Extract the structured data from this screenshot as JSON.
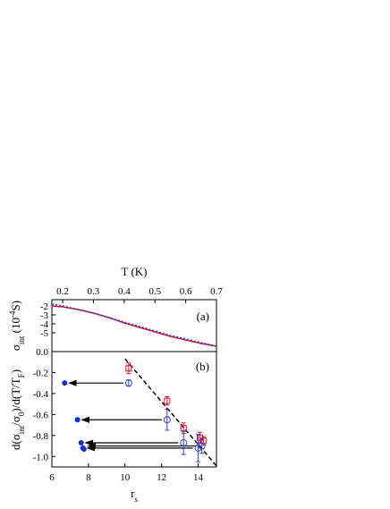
{
  "chart_data": [
    {
      "type": "line",
      "xlabel": "T (K)",
      "ylabel": [
        "σ",
        "int",
        " (10",
        "-4",
        "S)"
      ],
      "annotation": "(a)",
      "x": [
        0.165,
        0.2,
        0.25,
        0.3,
        0.35,
        0.4,
        0.45,
        0.5,
        0.55,
        0.6,
        0.65,
        0.7
      ],
      "xlim": [
        0.165,
        0.7
      ],
      "xticks": [
        0.2,
        0.3,
        0.4,
        0.5,
        0.6,
        0.7
      ],
      "ylim": [
        -7.1,
        -1.3
      ],
      "yticks": [
        -2,
        -3,
        -4,
        -5
      ],
      "series": [
        {
          "color": "#e0102a",
          "style": "solid",
          "values": [
            -2.0,
            -2.1,
            -2.4,
            -2.8,
            -3.3,
            -3.9,
            -4.4,
            -4.9,
            -5.4,
            -5.8,
            -6.2,
            -6.5
          ]
        },
        {
          "color": "#2a3fd8",
          "style": "dotted",
          "values": [
            -1.8,
            -2.0,
            -2.4,
            -2.8,
            -3.3,
            -3.8,
            -4.3,
            -4.8,
            -5.3,
            -5.7,
            -6.1,
            -6.5
          ]
        }
      ]
    },
    {
      "type": "scatter",
      "xlabel": [
        "r",
        "s"
      ],
      "ylabel": [
        "d(σ",
        "int",
        "/σ",
        "0",
        ")/d(T/T",
        "F",
        ")"
      ],
      "annotation": "(b)",
      "xlim": [
        6,
        15
      ],
      "xticks": [
        6,
        8,
        10,
        12,
        14
      ],
      "ylim": [
        -1.1,
        0
      ],
      "yticks": [
        {
          "value": 0,
          "label": "0.0"
        },
        -0.2,
        -0.4,
        -0.6,
        -0.8,
        {
          "value": -1,
          "label": "-1.0"
        }
      ],
      "series": [
        {
          "color": "#e0102a",
          "marker": "square",
          "x": [
            10.2,
            12.3,
            13.2,
            14.1,
            14.3
          ],
          "values": [
            -0.16,
            -0.47,
            -0.73,
            -0.82,
            -0.85
          ],
          "errors": [
            0.05,
            0.04,
            0.05,
            0.05,
            0.04
          ]
        },
        {
          "color": "#2a3fd8",
          "marker": "circle",
          "x": [
            10.2,
            12.3,
            13.2,
            14.0,
            14.2
          ],
          "values": [
            -0.3,
            -0.65,
            -0.87,
            -0.92,
            -0.9
          ],
          "errors": [
            0.03,
            0.1,
            0.11,
            0.13,
            0.07
          ]
        },
        {
          "color": "#1030e0",
          "marker": "dot",
          "x": [
            6.7,
            7.4,
            7.6,
            7.7,
            7.75
          ],
          "values": [
            -0.3,
            -0.65,
            -0.87,
            -0.92,
            -0.93
          ]
        }
      ],
      "fit_line": {
        "x": [
          10,
          15
        ],
        "values": [
          -0.07,
          -1.09
        ]
      }
    }
  ]
}
